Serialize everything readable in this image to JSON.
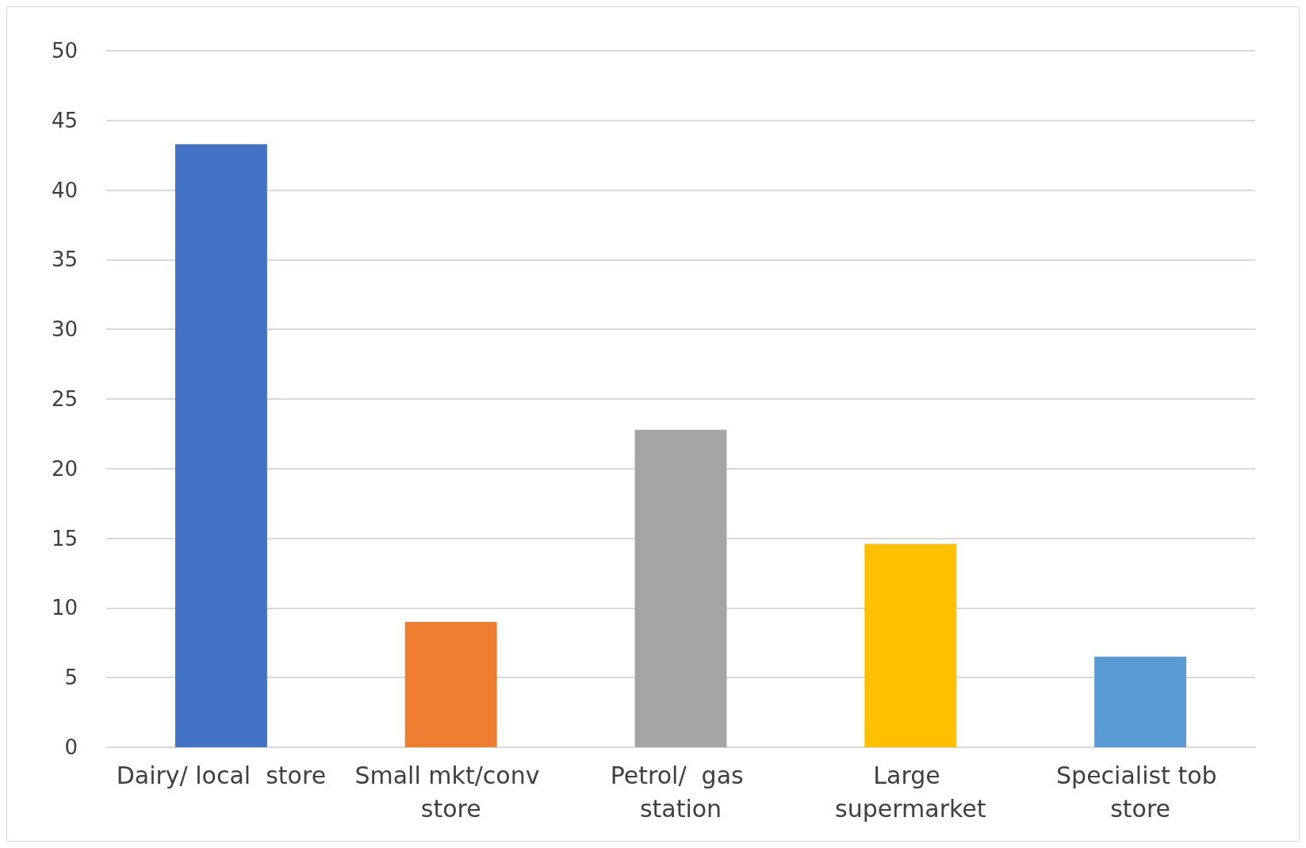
{
  "chart_data": {
    "type": "bar",
    "categories": [
      "Dairy/ local  store",
      "Small mkt/conv store",
      "Petrol/  gas station",
      "Large supermarket",
      "Specialist tob store"
    ],
    "values": [
      43.3,
      9.0,
      22.8,
      14.6,
      6.5
    ],
    "colors": [
      "#4472c4",
      "#ed7d31",
      "#a5a5a5",
      "#ffc000",
      "#5b9bd5"
    ],
    "ylim": [
      0,
      50
    ],
    "yticks": [
      0,
      5,
      10,
      15,
      20,
      25,
      30,
      35,
      40,
      45,
      50
    ],
    "grid": "y"
  }
}
